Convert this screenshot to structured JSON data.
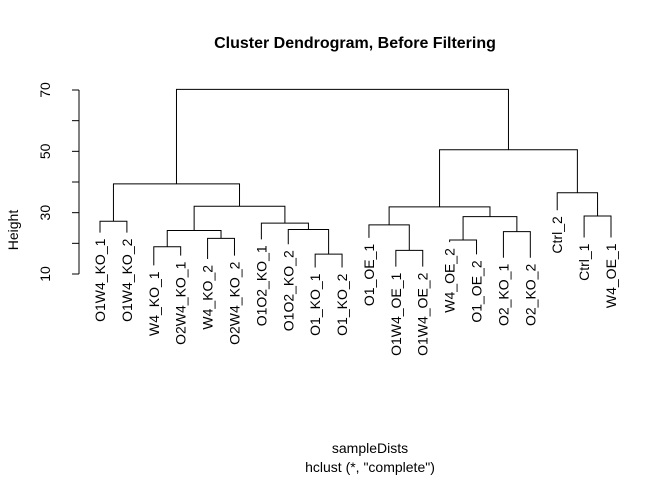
{
  "chart_data": {
    "type": "dendrogram",
    "title": "Cluster Dendrogram, Before Filtering",
    "ylabel": "Height",
    "xlabel": "sampleDists",
    "sublabel": "hclust (*, \"complete\")",
    "ylim": [
      10,
      70
    ],
    "yticks": [
      10,
      30,
      50,
      70
    ],
    "yminorticks": [
      20,
      40,
      60
    ],
    "leaves": [
      "O1W4_KO_1",
      "O1W4_KO_2",
      "W4_KO_1",
      "O2W4_KO_1",
      "W4_KO_2",
      "O2W4_KO_2",
      "O1O2_KO_1",
      "O1O2_KO_2",
      "O1_KO_1",
      "O1_KO_2",
      "O1_OE_1",
      "O1W4_OE_1",
      "O1W4_OE_2",
      "W4_OE_2",
      "O1_OE_2",
      "O2_KO_1",
      "O2_KO_2",
      "Ctrl_2",
      "Ctrl_1",
      "W4_OE_1"
    ],
    "leaf_heights": [
      23.5,
      23.5,
      12.8,
      16.0,
      14.9,
      16.0,
      21.3,
      19.7,
      12.1,
      12.1,
      21.8,
      12.4,
      12.4,
      20.4,
      16.4,
      15.3,
      15.3,
      30.8,
      21.9,
      21.9
    ],
    "merges": [
      {
        "left": "O1W4_KO_1",
        "right": "O1W4_KO_2",
        "height": 27.2
      },
      {
        "left": "W4_KO_1",
        "right": "O2W4_KO_1",
        "height": 18.9
      },
      {
        "left": "W4_KO_2",
        "right": "O2W4_KO_2",
        "height": 21.6
      },
      {
        "left": "W4_KO_1 + O2W4_KO_1",
        "right": "W4_KO_2 + O2W4_KO_2",
        "height": 24.2
      },
      {
        "left": "O1_KO_1",
        "right": "O1_KO_2",
        "height": 16.5
      },
      {
        "left": "O1O2_KO_2",
        "right": "O1_KO_1 + O1_KO_2",
        "height": 24.5
      },
      {
        "left": "O1O2_KO_1",
        "right": "O1O2_KO_2 + O1_KO_*",
        "height": 26.6
      },
      {
        "left": "W4/O2W4_KO",
        "right": "O1O2/O1_KO",
        "height": 32.1
      },
      {
        "left": "O1W4_KO",
        "right": "W4/O2W4/O1O2/O1_KO",
        "height": 39.4
      },
      {
        "left": "O1W4_OE_1",
        "right": "O1W4_OE_2",
        "height": 17.7
      },
      {
        "left": "O1_OE_1",
        "right": "O1W4_OE_1 + O1W4_OE_2",
        "height": 26.0
      },
      {
        "left": "W4_OE_2",
        "right": "O1_OE_2",
        "height": 21.1
      },
      {
        "left": "O2_KO_1",
        "right": "O2_KO_2",
        "height": 23.8
      },
      {
        "left": "W4_OE_2 + O1_OE_2",
        "right": "O2_KO_1 + O2_KO_2",
        "height": 28.7
      },
      {
        "left": "O1_OE / O1W4_OE",
        "right": "W4_OE_2 / O1_OE_2 / O2_KO",
        "height": 31.9
      },
      {
        "left": "Ctrl_1",
        "right": "W4_OE_1",
        "height": 28.9
      },
      {
        "left": "Ctrl_2",
        "right": "Ctrl_1 + W4_OE_1",
        "height": 36.5
      },
      {
        "left": "OE / O2_KO group",
        "right": "Ctrl / W4_OE_1 group",
        "height": 50.5
      },
      {
        "left": "KO group",
        "right": "OE / Ctrl group",
        "height": 70.2
      }
    ]
  }
}
